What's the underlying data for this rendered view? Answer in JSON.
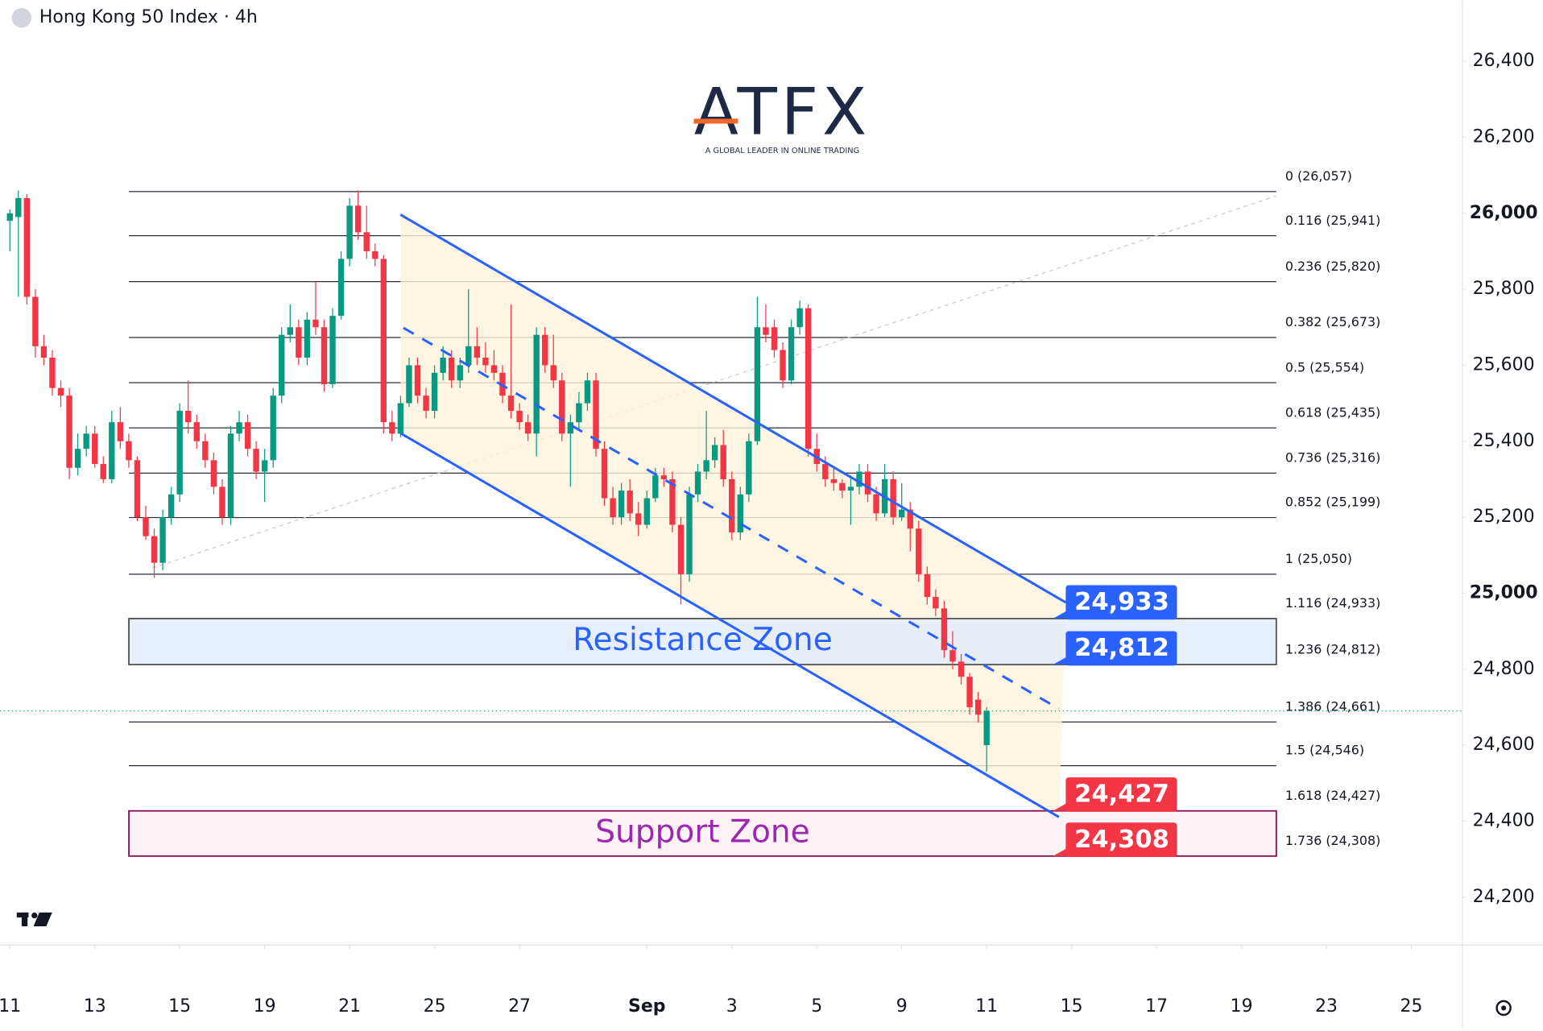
{
  "chart_data": {
    "type": "candlestick",
    "title": "Hong Kong 50 Index · 4h",
    "logo": "ATFX",
    "tagline": "A GLOBAL LEADER IN ONLINE TRADING",
    "up_color": "#089981",
    "down_color": "#f23645",
    "xlim": [
      -1.16,
      171
    ],
    "xticks": [
      {
        "value": 0,
        "label": "11"
      },
      {
        "value": 10,
        "label": "13"
      },
      {
        "value": 20,
        "label": "15"
      },
      {
        "value": 30,
        "label": "19"
      },
      {
        "value": 40,
        "label": "21"
      },
      {
        "value": 50,
        "label": "25"
      },
      {
        "value": 60,
        "label": "27"
      },
      {
        "value": 75,
        "label": "Sep",
        "bold": true
      },
      {
        "value": 85,
        "label": "3"
      },
      {
        "value": 95,
        "label": "5"
      },
      {
        "value": 105,
        "label": "9"
      },
      {
        "value": 115,
        "label": "11"
      },
      {
        "value": 125,
        "label": "15"
      },
      {
        "value": 135,
        "label": "17"
      },
      {
        "value": 145,
        "label": "19"
      },
      {
        "value": 155,
        "label": "23"
      },
      {
        "value": 165,
        "label": "25"
      }
    ],
    "ylim": [
      24074,
      26561
    ],
    "yticks": [
      {
        "value": 24200,
        "label": "24,200"
      },
      {
        "value": 24400,
        "label": "24,400"
      },
      {
        "value": 24600,
        "label": "24,600"
      },
      {
        "value": 24800,
        "label": "24,800"
      },
      {
        "value": 25000,
        "label": "25,000",
        "bold": true
      },
      {
        "value": 25200,
        "label": "25,200"
      },
      {
        "value": 25400,
        "label": "25,400"
      },
      {
        "value": 25600,
        "label": "25,600"
      },
      {
        "value": 25800,
        "label": "25,800"
      },
      {
        "value": 26000,
        "label": "26,000",
        "bold": true
      },
      {
        "value": 26200,
        "label": "26,200"
      },
      {
        "value": 26400,
        "label": "26,400"
      }
    ],
    "ohlc": [
      [
        25980,
        26010,
        25900,
        26000
      ],
      [
        25990,
        26060,
        25780,
        26040
      ],
      [
        26040,
        26050,
        25760,
        25780
      ],
      [
        25780,
        25800,
        25620,
        25650
      ],
      [
        25650,
        25680,
        25600,
        25620
      ],
      [
        25620,
        25640,
        25520,
        25540
      ],
      [
        25540,
        25560,
        25490,
        25520
      ],
      [
        25520,
        25540,
        25300,
        25330
      ],
      [
        25330,
        25420,
        25310,
        25380
      ],
      [
        25380,
        25440,
        25360,
        25420
      ],
      [
        25420,
        25440,
        25330,
        25340
      ],
      [
        25340,
        25360,
        25290,
        25300
      ],
      [
        25300,
        25480,
        25290,
        25450
      ],
      [
        25450,
        25490,
        25380,
        25400
      ],
      [
        25400,
        25420,
        25330,
        25350
      ],
      [
        25350,
        25360,
        25190,
        25200
      ],
      [
        25200,
        25230,
        25140,
        25150
      ],
      [
        25150,
        25170,
        25040,
        25080
      ],
      [
        25080,
        25220,
        25060,
        25200
      ],
      [
        25200,
        25280,
        25180,
        25260
      ],
      [
        25260,
        25500,
        25240,
        25480
      ],
      [
        25480,
        25560,
        25420,
        25450
      ],
      [
        25450,
        25470,
        25380,
        25400
      ],
      [
        25400,
        25420,
        25330,
        25350
      ],
      [
        25350,
        25370,
        25260,
        25280
      ],
      [
        25280,
        25300,
        25180,
        25200
      ],
      [
        25200,
        25440,
        25180,
        25420
      ],
      [
        25420,
        25480,
        25400,
        25450
      ],
      [
        25450,
        25470,
        25360,
        25380
      ],
      [
        25380,
        25400,
        25300,
        25320
      ],
      [
        25320,
        25380,
        25240,
        25350
      ],
      [
        25350,
        25540,
        25330,
        25520
      ],
      [
        25520,
        25700,
        25500,
        25680
      ],
      [
        25680,
        25760,
        25660,
        25700
      ],
      [
        25700,
        25720,
        25600,
        25620
      ],
      [
        25620,
        25740,
        25600,
        25720
      ],
      [
        25720,
        25820,
        25680,
        25700
      ],
      [
        25700,
        25720,
        25530,
        25550
      ],
      [
        25550,
        25750,
        25540,
        25730
      ],
      [
        25730,
        25900,
        25720,
        25880
      ],
      [
        25880,
        26040,
        25860,
        26020
      ],
      [
        26020,
        26060,
        25930,
        25950
      ],
      [
        25950,
        26020,
        25880,
        25900
      ],
      [
        25900,
        25920,
        25860,
        25880
      ],
      [
        25880,
        25890,
        25420,
        25450
      ],
      [
        25450,
        25480,
        25400,
        25420
      ],
      [
        25420,
        25520,
        25410,
        25500
      ],
      [
        25500,
        25620,
        25490,
        25600
      ],
      [
        25600,
        25620,
        25500,
        25520
      ],
      [
        25520,
        25540,
        25460,
        25480
      ],
      [
        25480,
        25600,
        25460,
        25580
      ],
      [
        25580,
        25650,
        25560,
        25620
      ],
      [
        25620,
        25640,
        25540,
        25560
      ],
      [
        25560,
        25620,
        25540,
        25600
      ],
      [
        25600,
        25800,
        25580,
        25650
      ],
      [
        25650,
        25700,
        25600,
        25620
      ],
      [
        25620,
        25660,
        25580,
        25600
      ],
      [
        25600,
        25640,
        25560,
        25580
      ],
      [
        25580,
        25600,
        25500,
        25520
      ],
      [
        25520,
        25760,
        25460,
        25480
      ],
      [
        25480,
        25500,
        25430,
        25450
      ],
      [
        25450,
        25470,
        25400,
        25420
      ],
      [
        25420,
        25700,
        25360,
        25680
      ],
      [
        25680,
        25700,
        25580,
        25600
      ],
      [
        25600,
        25680,
        25540,
        25560
      ],
      [
        25560,
        25580,
        25400,
        25420
      ],
      [
        25420,
        25470,
        25280,
        25450
      ],
      [
        25450,
        25530,
        25430,
        25500
      ],
      [
        25500,
        25580,
        25480,
        25560
      ],
      [
        25560,
        25580,
        25360,
        25380
      ],
      [
        25380,
        25400,
        25230,
        25250
      ],
      [
        25250,
        25280,
        25180,
        25200
      ],
      [
        25200,
        25290,
        25180,
        25270
      ],
      [
        25270,
        25300,
        25190,
        25210
      ],
      [
        25210,
        25240,
        25150,
        25180
      ],
      [
        25180,
        25270,
        25170,
        25250
      ],
      [
        25250,
        25330,
        25240,
        25310
      ],
      [
        25310,
        25330,
        25280,
        25300
      ],
      [
        25300,
        25320,
        25160,
        25180
      ],
      [
        25180,
        25200,
        24970,
        25050
      ],
      [
        25050,
        25280,
        25030,
        25260
      ],
      [
        25260,
        25340,
        25240,
        25320
      ],
      [
        25320,
        25480,
        25300,
        25350
      ],
      [
        25350,
        25410,
        25330,
        25390
      ],
      [
        25390,
        25430,
        25280,
        25300
      ],
      [
        25300,
        25320,
        25140,
        25160
      ],
      [
        25160,
        25280,
        25140,
        25260
      ],
      [
        25260,
        25420,
        25240,
        25400
      ],
      [
        25400,
        25780,
        25390,
        25700
      ],
      [
        25700,
        25760,
        25660,
        25680
      ],
      [
        25700,
        25720,
        25620,
        25640
      ],
      [
        25640,
        25660,
        25540,
        25560
      ],
      [
        25560,
        25720,
        25550,
        25700
      ],
      [
        25700,
        25770,
        25680,
        25750
      ],
      [
        25750,
        25760,
        25360,
        25380
      ],
      [
        25380,
        25420,
        25320,
        25340
      ],
      [
        25340,
        25360,
        25280,
        25300
      ],
      [
        25300,
        25330,
        25270,
        25290
      ],
      [
        25290,
        25300,
        25250,
        25270
      ],
      [
        25270,
        25310,
        25180,
        25280
      ],
      [
        25280,
        25340,
        25260,
        25320
      ],
      [
        25320,
        25340,
        25240,
        25260
      ],
      [
        25260,
        25280,
        25190,
        25210
      ],
      [
        25210,
        25340,
        25200,
        25300
      ],
      [
        25300,
        25320,
        25180,
        25200
      ],
      [
        25200,
        25290,
        25190,
        25220
      ],
      [
        25220,
        25240,
        25110,
        25170
      ],
      [
        25170,
        25190,
        25030,
        25050
      ],
      [
        25050,
        25070,
        24970,
        24990
      ],
      [
        24990,
        25010,
        24940,
        24960
      ],
      [
        24960,
        24980,
        24830,
        24850
      ],
      [
        24850,
        24900,
        24800,
        24820
      ],
      [
        24820,
        24840,
        24760,
        24780
      ],
      [
        24780,
        24790,
        24680,
        24700
      ],
      [
        24720,
        24740,
        24660,
        24680
      ],
      [
        24600,
        24700,
        24530,
        24690
      ]
    ],
    "levels": [
      {
        "value": 26057,
        "label": "0 (26,057)"
      },
      {
        "value": 25941,
        "label": "0.116 (25,941)"
      },
      {
        "value": 25820,
        "label": "0.236 (25,820)"
      },
      {
        "value": 25673,
        "label": "0.382 (25,673)"
      },
      {
        "value": 25554,
        "label": "0.5 (25,554)"
      },
      {
        "value": 25435,
        "label": "0.618 (25,435)"
      },
      {
        "value": 25316,
        "label": "0.736 (25,316)"
      },
      {
        "value": 25199,
        "label": "0.852 (25,199)"
      },
      {
        "value": 25050,
        "label": "1 (25,050)"
      },
      {
        "value": 24933,
        "label": "1.116 (24,933)"
      },
      {
        "value": 24812,
        "label": "1.236 (24,812)"
      },
      {
        "value": 24661,
        "label": "1.386 (24,661)"
      },
      {
        "value": 24546,
        "label": "1.5 (24,546)"
      },
      {
        "value": 24427,
        "label": "1.618 (24,427)"
      },
      {
        "value": 24308,
        "label": "1.736 (24,308)"
      }
    ],
    "zones": [
      {
        "label": "Resistance Zone",
        "range": [
          24812,
          24933
        ],
        "color": "#2962ff",
        "fill": "#e3ecfb",
        "border": "#555555"
      },
      {
        "label": "Support Zone",
        "range": [
          24308,
          24427
        ],
        "color": "#9c27b0",
        "fill": "#fdf1f4",
        "border": "#880e4f"
      }
    ],
    "price_tags": [
      {
        "value": 24933,
        "label": "24,933",
        "color": "#2962ff"
      },
      {
        "value": 24812,
        "label": "24,812",
        "color": "#2962ff"
      },
      {
        "value": 24427,
        "label": "24,427",
        "color": "#f23645"
      },
      {
        "value": 24308,
        "label": "24,308",
        "color": "#f23645"
      }
    ]
  }
}
